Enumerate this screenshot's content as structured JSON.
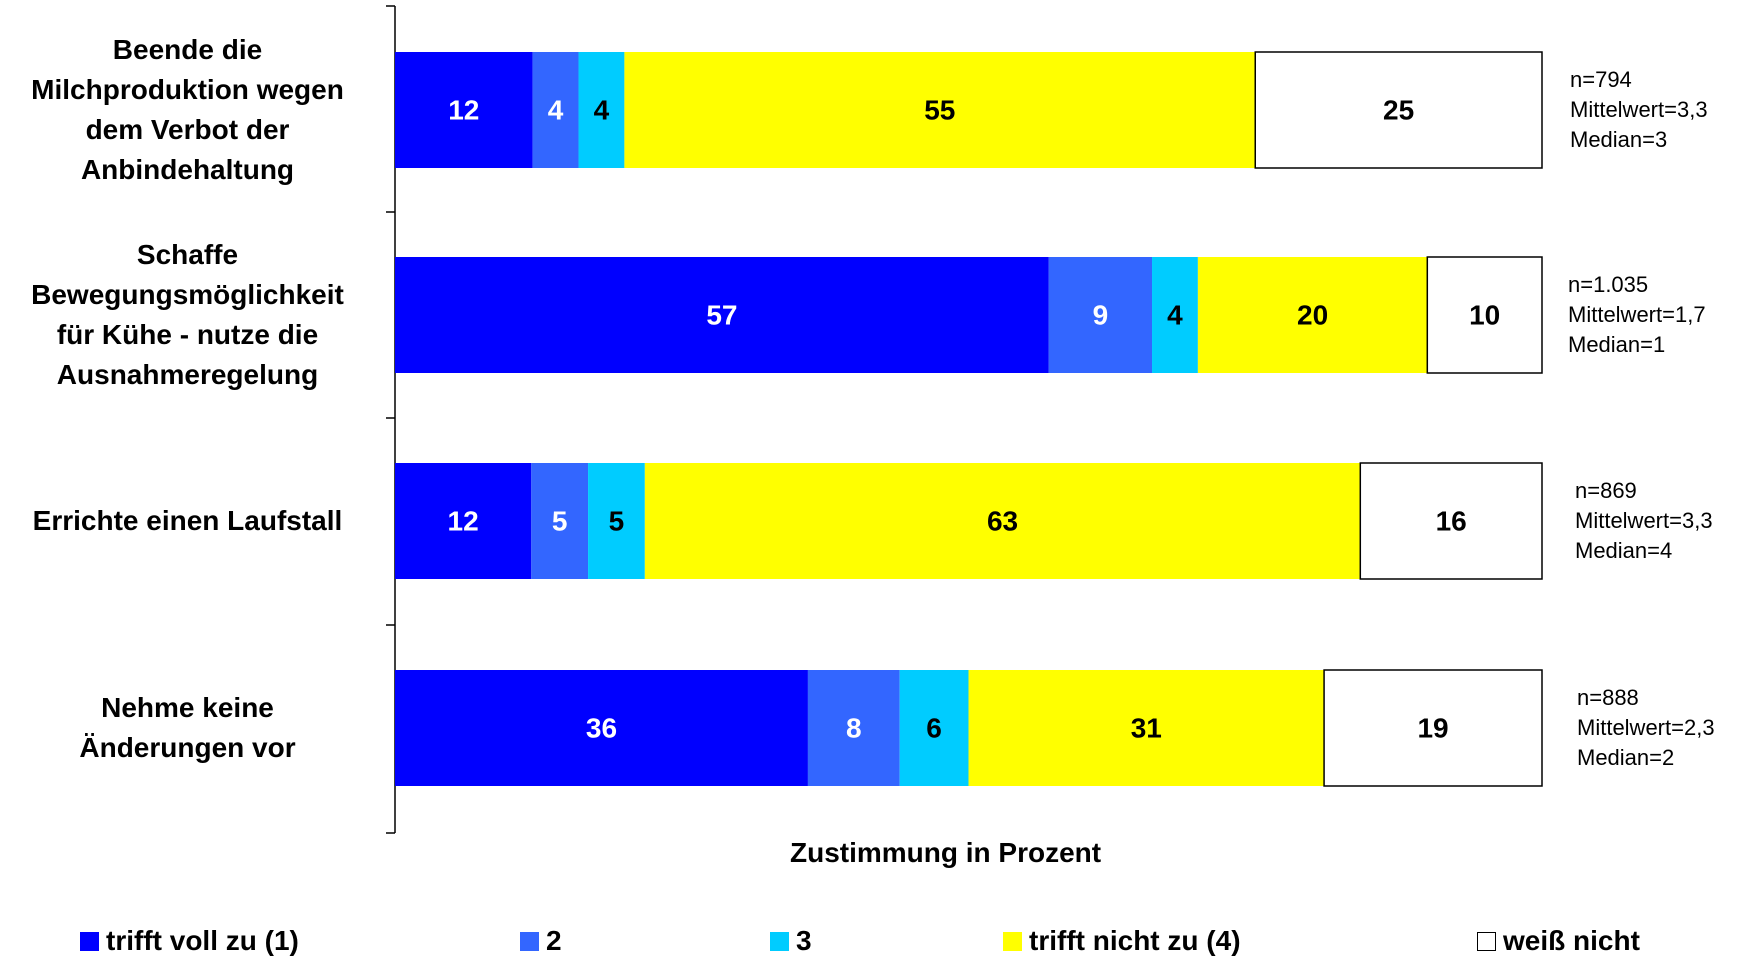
{
  "chart_data": {
    "type": "bar",
    "orientation": "horizontal",
    "stacked": true,
    "xlabel": "Zustimmung in Prozent",
    "categories": [
      {
        "lines": [
          "Beende die",
          "Milchproduktion wegen",
          "dem Verbot der",
          "Anbindehaltung"
        ],
        "stats": [
          "n=794",
          "Mittelwert=3,3",
          "Median=3"
        ]
      },
      {
        "lines": [
          "Schaffe",
          "Bewegungsmöglichkeit",
          "für Kühe - nutze die",
          "Ausnahmeregelung"
        ],
        "stats": [
          "n=1.035",
          "Mittelwert=1,7",
          "Median=1"
        ]
      },
      {
        "lines": [
          "Errichte einen Laufstall"
        ],
        "stats": [
          "n=869",
          "Mittelwert=3,3",
          "Median=4"
        ]
      },
      {
        "lines": [
          "Nehme keine",
          "Änderungen vor"
        ],
        "stats": [
          "n=888",
          "Mittelwert=2,3",
          "Median=2"
        ]
      }
    ],
    "series": [
      {
        "name": "trifft voll zu (1)",
        "color": "#0000FF",
        "label_color": "#FFFFFF",
        "values": [
          12,
          57,
          12,
          36
        ]
      },
      {
        "name": "2",
        "color": "#3366FF",
        "label_color": "#FFFFFF",
        "values": [
          4,
          9,
          5,
          8
        ]
      },
      {
        "name": "3",
        "color": "#00CCFF",
        "label_color": "#000000",
        "values": [
          4,
          4,
          5,
          6
        ]
      },
      {
        "name": "trifft nicht zu (4)",
        "color": "#FFFF00",
        "label_color": "#000000",
        "values": [
          55,
          20,
          63,
          31
        ]
      },
      {
        "name": "weiß nicht",
        "color": "#FFFFFF",
        "label_color": "#000000",
        "values": [
          25,
          10,
          16,
          19
        ]
      }
    ]
  }
}
